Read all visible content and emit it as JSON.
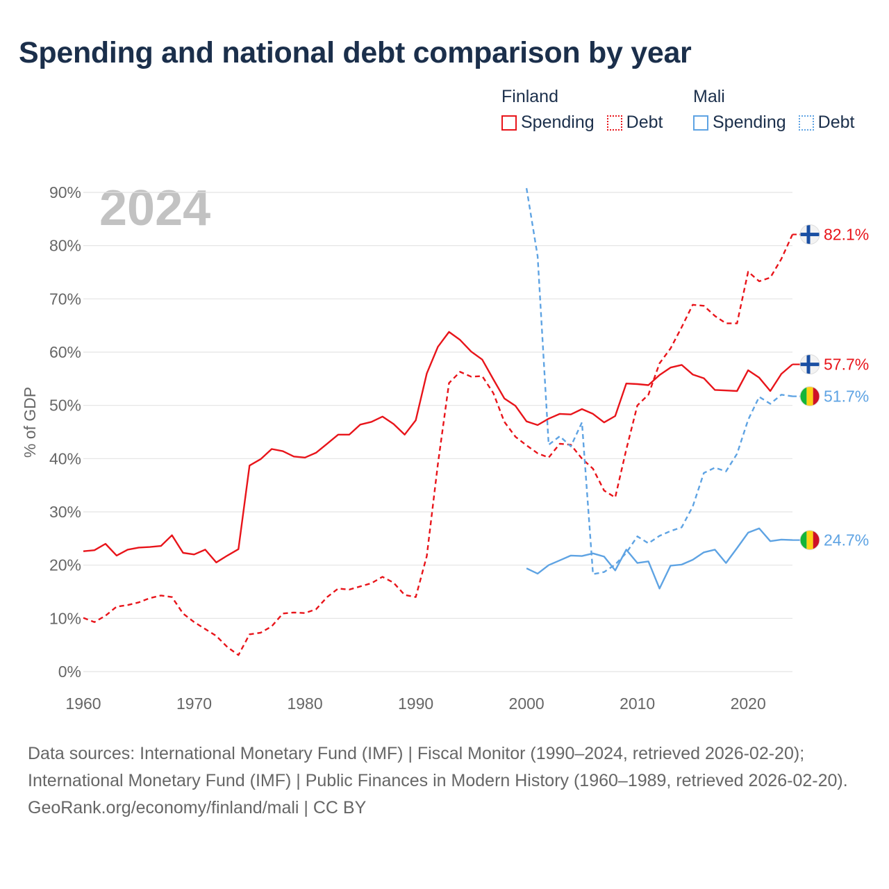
{
  "title": "Spending and national debt comparison by year",
  "legend": {
    "groups": [
      {
        "name": "Finland",
        "items": [
          {
            "label": "Spending",
            "style": "solid",
            "color": "#e8141a"
          },
          {
            "label": "Debt",
            "style": "dotted",
            "color": "#e8141a"
          }
        ]
      },
      {
        "name": "Mali",
        "items": [
          {
            "label": "Spending",
            "style": "solid",
            "color": "#5ea3e3"
          },
          {
            "label": "Debt",
            "style": "dotted",
            "color": "#5ea3e3"
          }
        ]
      }
    ]
  },
  "colors": {
    "finland": "#e8141a",
    "mali": "#5ea3e3",
    "grid": "#e3e3e3",
    "year_watermark": "#c2c2c2",
    "title": "#1b2f4b"
  },
  "chart_data": {
    "type": "line",
    "year_label": "2024",
    "ylabel": "% of GDP",
    "xlim": [
      1960,
      2024
    ],
    "ylim": [
      0,
      90
    ],
    "x_ticks": [
      1960,
      1970,
      1980,
      1990,
      2000,
      2010,
      2020
    ],
    "y_ticks": [
      0,
      10,
      20,
      30,
      40,
      50,
      60,
      70,
      80,
      90
    ],
    "y_tick_format": "%",
    "series": [
      {
        "name": "Finland Spending",
        "country": "Finland",
        "kind": "spending",
        "color": "#e8141a",
        "dash": "solid",
        "end_label": "57.7%",
        "flag": "finland",
        "x": [
          1960,
          1961,
          1962,
          1963,
          1964,
          1965,
          1966,
          1967,
          1968,
          1969,
          1970,
          1971,
          1972,
          1973,
          1974,
          1975,
          1976,
          1977,
          1978,
          1979,
          1980,
          1981,
          1982,
          1983,
          1984,
          1985,
          1986,
          1987,
          1988,
          1989,
          1990,
          1991,
          1992,
          1993,
          1994,
          1995,
          1996,
          1997,
          1998,
          1999,
          2000,
          2001,
          2002,
          2003,
          2004,
          2005,
          2006,
          2007,
          2008,
          2009,
          2010,
          2011,
          2012,
          2013,
          2014,
          2015,
          2016,
          2017,
          2018,
          2019,
          2020,
          2021,
          2022,
          2023,
          2024
        ],
        "values": [
          22.6,
          22.8,
          24.0,
          21.8,
          22.9,
          23.3,
          23.4,
          23.6,
          25.6,
          22.3,
          22.0,
          22.9,
          20.5,
          21.8,
          23.0,
          38.7,
          39.9,
          41.8,
          41.4,
          40.4,
          40.2,
          41.1,
          42.8,
          44.5,
          44.5,
          46.4,
          46.9,
          47.9,
          46.5,
          44.5,
          47.2,
          56.0,
          61.0,
          63.8,
          62.3,
          60.1,
          58.6,
          54.9,
          51.3,
          49.9,
          47.0,
          46.3,
          47.5,
          48.4,
          48.3,
          49.3,
          48.4,
          46.8,
          48.0,
          54.1,
          54.0,
          53.8,
          55.7,
          57.1,
          57.6,
          55.8,
          55.1,
          52.9,
          52.8,
          52.7,
          56.6,
          55.2,
          52.7,
          55.9,
          57.7
        ]
      },
      {
        "name": "Finland Debt",
        "country": "Finland",
        "kind": "debt",
        "color": "#e8141a",
        "dash": "dashed",
        "end_label": "82.1%",
        "flag": "finland",
        "x": [
          1960,
          1961,
          1962,
          1963,
          1964,
          1965,
          1966,
          1967,
          1968,
          1969,
          1970,
          1971,
          1972,
          1973,
          1974,
          1975,
          1976,
          1977,
          1978,
          1979,
          1980,
          1981,
          1982,
          1983,
          1984,
          1985,
          1986,
          1987,
          1988,
          1989,
          1990,
          1991,
          1992,
          1993,
          1994,
          1995,
          1996,
          1997,
          1998,
          1999,
          2000,
          2001,
          2002,
          2003,
          2004,
          2005,
          2006,
          2007,
          2008,
          2009,
          2010,
          2011,
          2012,
          2013,
          2014,
          2015,
          2016,
          2017,
          2018,
          2019,
          2020,
          2021,
          2022,
          2023,
          2024
        ],
        "values": [
          10.1,
          9.3,
          10.5,
          12.2,
          12.5,
          13.0,
          13.8,
          14.3,
          14.0,
          10.9,
          9.3,
          8.0,
          6.7,
          4.6,
          3.1,
          7.0,
          7.3,
          8.5,
          10.9,
          11.1,
          11.0,
          11.7,
          14.0,
          15.6,
          15.4,
          16.0,
          16.6,
          17.8,
          16.7,
          14.4,
          14.0,
          21.7,
          39.0,
          54.2,
          56.3,
          55.4,
          55.5,
          52.3,
          46.9,
          44.1,
          42.5,
          41.0,
          40.2,
          42.8,
          42.6,
          40.0,
          38.1,
          34.0,
          32.7,
          41.7,
          50.0,
          52.0,
          57.9,
          60.7,
          64.7,
          68.9,
          68.7,
          66.8,
          65.4,
          65.4,
          75.1,
          73.3,
          74.0,
          77.5,
          82.1
        ]
      },
      {
        "name": "Mali Spending",
        "country": "Mali",
        "kind": "spending",
        "color": "#5ea3e3",
        "dash": "solid",
        "end_label": "24.7%",
        "flag": "mali",
        "x": [
          2000,
          2001,
          2002,
          2003,
          2004,
          2005,
          2006,
          2007,
          2008,
          2009,
          2010,
          2011,
          2012,
          2013,
          2014,
          2015,
          2016,
          2017,
          2018,
          2019,
          2020,
          2021,
          2022,
          2023,
          2024
        ],
        "values": [
          19.4,
          18.4,
          20.0,
          20.9,
          21.8,
          21.7,
          22.2,
          21.6,
          19.0,
          22.9,
          20.4,
          20.7,
          15.6,
          19.9,
          20.1,
          21.0,
          22.4,
          22.9,
          20.4,
          23.2,
          26.1,
          26.9,
          24.5,
          24.8,
          24.7
        ]
      },
      {
        "name": "Mali Debt",
        "country": "Mali",
        "kind": "debt",
        "color": "#5ea3e3",
        "dash": "dashed",
        "end_label": "51.7%",
        "flag": "mali",
        "x": [
          2000,
          2001,
          2002,
          2003,
          2004,
          2005,
          2006,
          2007,
          2008,
          2009,
          2010,
          2011,
          2012,
          2013,
          2014,
          2015,
          2016,
          2017,
          2018,
          2019,
          2020,
          2021,
          2022,
          2023,
          2024
        ],
        "values": [
          90.8,
          78.0,
          42.6,
          44.2,
          42.3,
          46.8,
          18.3,
          18.7,
          20.1,
          22.3,
          25.4,
          24.1,
          25.5,
          26.4,
          27.1,
          31.0,
          37.3,
          38.3,
          37.6,
          40.9,
          47.3,
          51.6,
          50.3,
          52.0,
          51.7
        ]
      }
    ]
  },
  "footer": {
    "sources": "Data sources: International Monetary Fund (IMF) | Fiscal Monitor (1990–2024, retrieved 2026-02-20); International Monetary Fund (IMF) | Public Finances in Modern History (1960–1989, retrieved 2026-02-20).",
    "link": "GeoRank.org/economy/finland/mali | CC BY"
  }
}
